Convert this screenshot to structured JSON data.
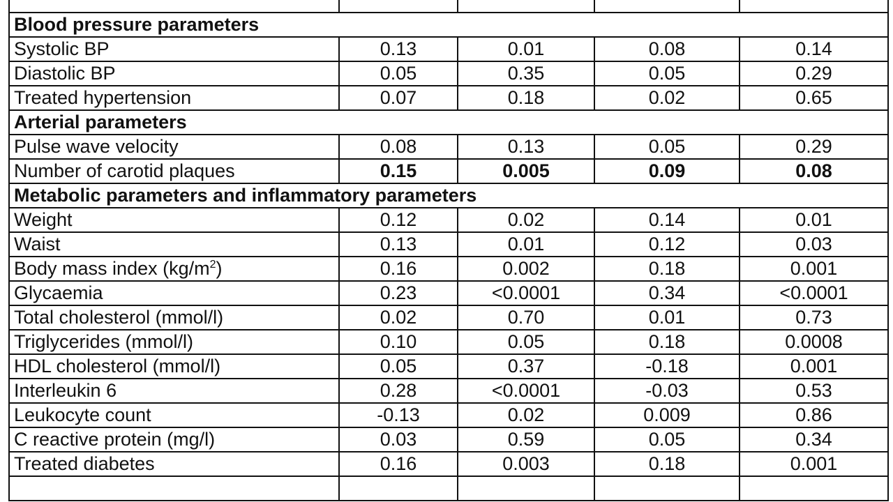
{
  "table": {
    "sections": [
      {
        "title": "Blood pressure parameters",
        "rows": [
          {
            "label": "Systolic BP",
            "values": [
              "0.13",
              "0.01",
              "0.08",
              "0.14"
            ],
            "bold": false
          },
          {
            "label": "Diastolic BP",
            "values": [
              "0.05",
              "0.35",
              "0.05",
              "0.29"
            ],
            "bold": false
          },
          {
            "label": "Treated hypertension",
            "values": [
              "0.07",
              "0.18",
              "0.02",
              "0.65"
            ],
            "bold": false
          }
        ]
      },
      {
        "title": "Arterial parameters",
        "rows": [
          {
            "label": "Pulse wave velocity",
            "values": [
              "0.08",
              "0.13",
              "0.05",
              "0.29"
            ],
            "bold": false
          },
          {
            "label": "Number of carotid plaques",
            "values": [
              "0.15",
              "0.005",
              "0.09",
              "0.08"
            ],
            "bold": true
          }
        ]
      },
      {
        "title": "Metabolic parameters and inflammatory parameters",
        "rows": [
          {
            "label": "Weight",
            "values": [
              "0.12",
              "0.02",
              "0.14",
              "0.01"
            ],
            "bold": false
          },
          {
            "label": "Waist",
            "values": [
              "0.13",
              "0.01",
              "0.12",
              "0.03"
            ],
            "bold": false
          },
          {
            "label": "Body mass index (kg/m",
            "label_sup": "2",
            "label_suffix": ")",
            "values": [
              "0.16",
              "0.002",
              "0.18",
              "0.001"
            ],
            "bold": false
          },
          {
            "label": "Glycaemia",
            "values": [
              "0.23",
              "<0.0001",
              "0.34",
              "<0.0001"
            ],
            "bold": false
          },
          {
            "label": "Total cholesterol (mmol/l)",
            "values": [
              "0.02",
              "0.70",
              "0.01",
              "0.73"
            ],
            "bold": false
          },
          {
            "label": "Triglycerides (mmol/l)",
            "values": [
              "0.10",
              "0.05",
              "0.18",
              "0.0008"
            ],
            "bold": false
          },
          {
            "label": "HDL cholesterol (mmol/l)",
            "values": [
              "0.05",
              "0.37",
              "-0.18",
              "0.001"
            ],
            "bold": false
          },
          {
            "label": "Interleukin 6",
            "values": [
              "0.28",
              "<0.0001",
              "-0.03",
              "0.53"
            ],
            "bold": false
          },
          {
            "label": "Leukocyte count",
            "values": [
              "-0.13",
              "0.02",
              "0.009",
              "0.86"
            ],
            "bold": false
          },
          {
            "label": "C reactive protein (mg/l)",
            "values": [
              "0.03",
              "0.59",
              "0.05",
              "0.34"
            ],
            "bold": false
          },
          {
            "label": "Treated diabetes",
            "values": [
              "0.16",
              "0.003",
              "0.18",
              "0.001"
            ],
            "bold": false
          }
        ]
      }
    ]
  }
}
